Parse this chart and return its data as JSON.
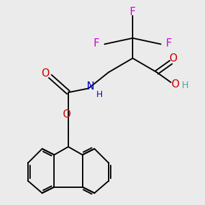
{
  "bg_color": "#ebebeb",
  "atom_colors": {
    "F": "#cc00cc",
    "O": "#cc0000",
    "N": "#0000cc",
    "H_teal": "#4aabab",
    "C": "#000000"
  },
  "bond_color": "#000000",
  "bond_width": 1.4,
  "font_size_atom": 11
}
